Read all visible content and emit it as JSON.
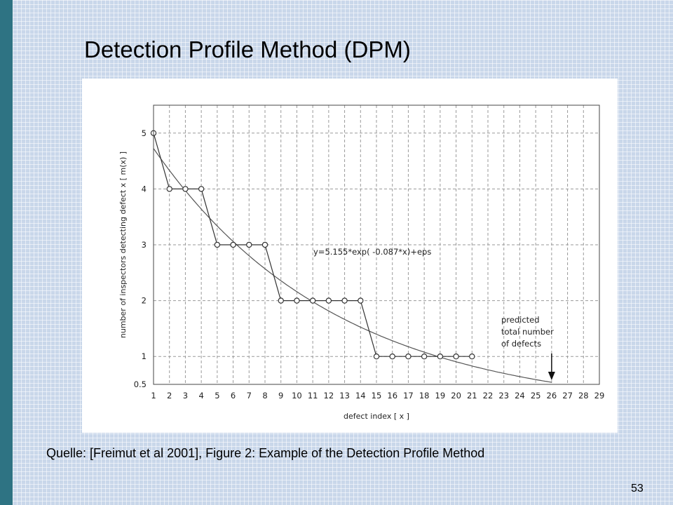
{
  "slide": {
    "title": "Detection Profile Method (DPM)",
    "caption": "Quelle: [Freimut et al 2001], Figure 2: Example of the Detection Profile Method",
    "page_number": "53"
  },
  "chart_data": {
    "type": "line",
    "title": "",
    "xlabel": "defect index  [ x ]",
    "ylabel": "number of inspectors detecting defect x  [ m(x) ]",
    "xlim": [
      1,
      29
    ],
    "ylim": [
      0.5,
      5.5
    ],
    "x_ticks": [
      1,
      2,
      3,
      4,
      5,
      6,
      7,
      8,
      9,
      10,
      11,
      12,
      13,
      14,
      15,
      16,
      17,
      18,
      19,
      20,
      21,
      22,
      23,
      24,
      25,
      26,
      27,
      28,
      29
    ],
    "y_ticks": [
      0.5,
      1,
      2,
      3,
      4,
      5
    ],
    "y_tick_labels": [
      "0.5",
      "1",
      "2",
      "3",
      "4",
      "5"
    ],
    "grid": true,
    "series": [
      {
        "kind": "step-markers",
        "x": [
          1,
          2,
          3,
          4,
          5,
          6,
          7,
          8,
          9,
          10,
          11,
          12,
          13,
          14,
          15,
          16,
          17,
          18,
          19,
          20,
          21
        ],
        "values": [
          5,
          4,
          4,
          4,
          3,
          3,
          3,
          3,
          2,
          2,
          2,
          2,
          2,
          2,
          1,
          1,
          1,
          1,
          1,
          1,
          1
        ]
      },
      {
        "kind": "fit-curve",
        "equation": "y=5.155*exp( -0.087*x)+eps",
        "a": 5.155,
        "b": -0.087,
        "x_range": [
          1,
          26
        ]
      }
    ],
    "annotations": {
      "equation_label": "y=5.155*exp( -0.087*x)+eps",
      "predicted_lines": [
        "predicted",
        "total number",
        "of defects"
      ],
      "arrow_x": 26
    }
  }
}
